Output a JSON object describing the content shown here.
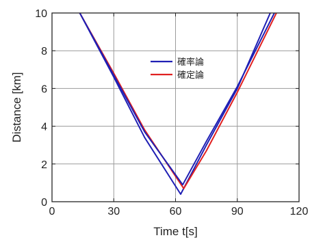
{
  "chart_data": {
    "type": "line",
    "xlabel": "Time t[s]",
    "ylabel": "Distance [km]",
    "xlim": [
      0,
      120
    ],
    "ylim": [
      0,
      10
    ],
    "xticks": [
      0,
      30,
      60,
      90,
      120
    ],
    "yticks": [
      0,
      2,
      4,
      6,
      8,
      10
    ],
    "grid": true,
    "legend_position": "center-right",
    "series": [
      {
        "name": "確率論",
        "color": "#1f1fb4",
        "x": [
          13.5,
          30,
          45,
          62.5,
          75,
          90,
          106
        ],
        "y": [
          10,
          6.6,
          3.4,
          0.4,
          3.0,
          6.0,
          10
        ]
      },
      {
        "name": "確定論",
        "color": "#e02020",
        "x": [
          13.5,
          30,
          45,
          64,
          75,
          90,
          109
        ],
        "y": [
          10,
          6.8,
          3.8,
          0.7,
          2.7,
          5.8,
          10
        ]
      },
      {
        "name": "",
        "color": "#1f1fb4",
        "x": [
          13.5,
          30,
          45,
          63.5,
          75,
          90,
          108
        ],
        "y": [
          10,
          6.7,
          3.7,
          0.9,
          3.2,
          6.1,
          10
        ]
      }
    ]
  }
}
